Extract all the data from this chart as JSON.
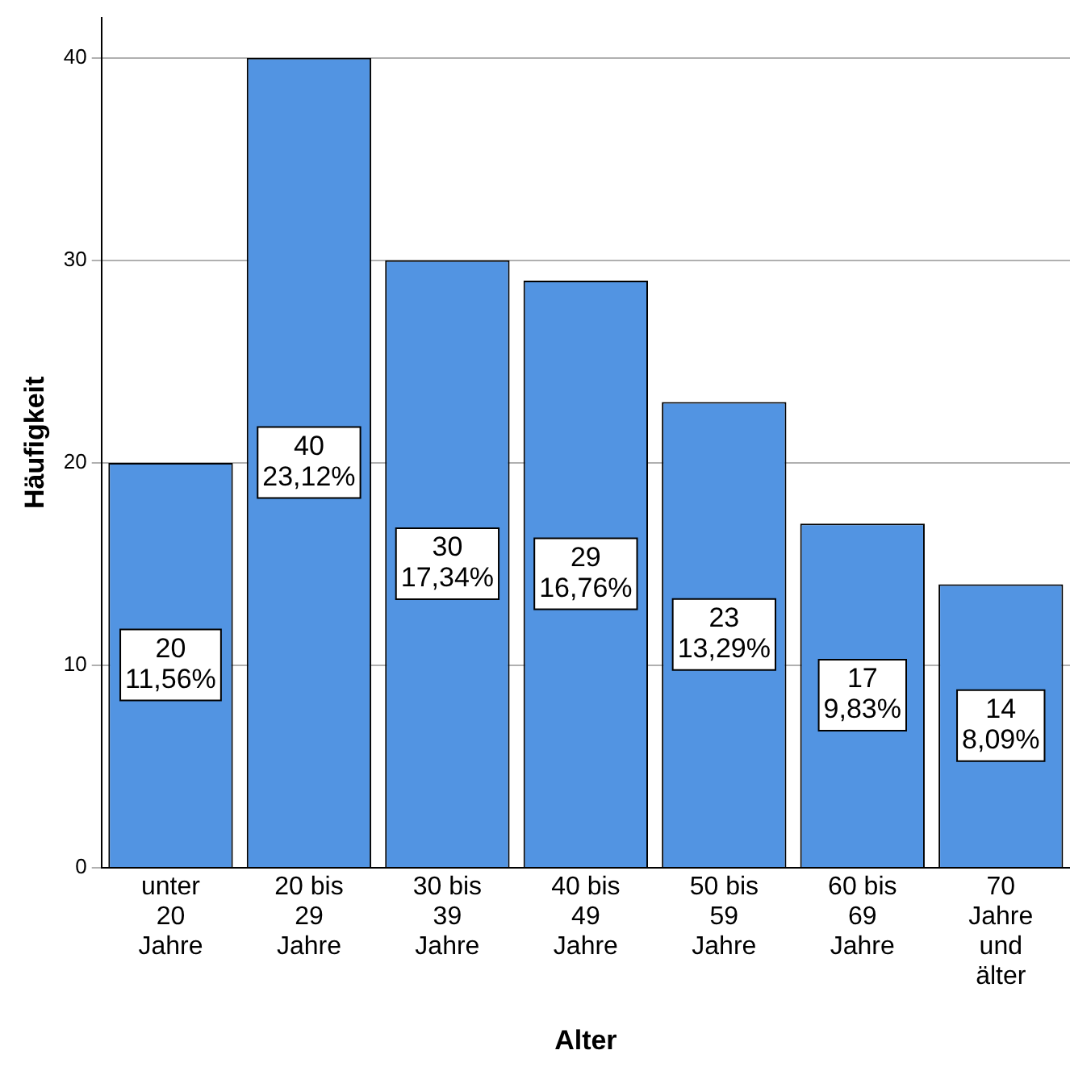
{
  "chart_data": {
    "type": "bar",
    "xlabel": "Alter",
    "ylabel": "Häufigkeit",
    "categories": [
      "unter 20 Jahre",
      "20 bis 29 Jahre",
      "30 bis 39 Jahre",
      "40 bis 49 Jahre",
      "50 bis 59 Jahre",
      "60 bis 69 Jahre",
      "70 Jahre und älter"
    ],
    "values": [
      20,
      40,
      30,
      29,
      23,
      17,
      14
    ],
    "value_labels": [
      "20 11,56%",
      "40 23,12%",
      "30 17,34%",
      "29 16,76%",
      "23 13,29%",
      "17 9,83%",
      "14 8,09%"
    ],
    "color": "#5294e2",
    "ylim": [
      0,
      42
    ],
    "yticks": [
      0,
      10,
      20,
      30,
      40
    ],
    "grid": "y",
    "legend": false
  }
}
